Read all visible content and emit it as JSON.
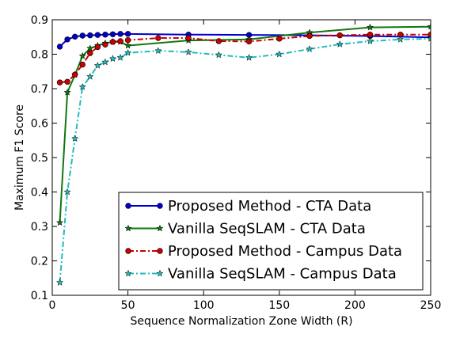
{
  "chart_data": {
    "type": "line",
    "title": "",
    "xlabel": "Sequence Normalization Zone Width (R)",
    "ylabel": "Maximum F1 Score",
    "xlim": [
      0,
      250
    ],
    "ylim": [
      0.1,
      0.9
    ],
    "x_ticks": [
      "0",
      "50",
      "100",
      "150",
      "200",
      "250"
    ],
    "y_ticks": [
      "0.1",
      "0.2",
      "0.3",
      "0.4",
      "0.5",
      "0.6",
      "0.7",
      "0.8",
      "0.9"
    ],
    "grid": false,
    "legend_position": "bottom-right",
    "series": [
      {
        "name": "Proposed Method - CTA Data",
        "color": "#0000cc",
        "line_style": "solid",
        "marker": "circle",
        "x": [
          5,
          10,
          15,
          20,
          25,
          30,
          35,
          40,
          45,
          50,
          90,
          130,
          170,
          210,
          250
        ],
        "y": [
          0.822,
          0.843,
          0.851,
          0.854,
          0.855,
          0.856,
          0.857,
          0.858,
          0.859,
          0.859,
          0.857,
          0.856,
          0.855,
          0.853,
          0.849
        ]
      },
      {
        "name": "Vanilla SeqSLAM - CTA Data",
        "color": "#117711",
        "line_style": "solid",
        "marker": "star",
        "x": [
          5,
          10,
          15,
          20,
          25,
          30,
          35,
          40,
          45,
          50,
          90,
          130,
          170,
          210,
          250
        ],
        "y": [
          0.311,
          0.689,
          0.74,
          0.795,
          0.817,
          0.825,
          0.832,
          0.836,
          0.836,
          0.825,
          0.84,
          0.843,
          0.863,
          0.878,
          0.88
        ]
      },
      {
        "name": "Proposed Method - Campus Data",
        "color": "#cc0000",
        "line_style": "dashdot",
        "marker": "circle",
        "x": [
          5,
          10,
          15,
          20,
          25,
          30,
          35,
          40,
          45,
          50,
          70,
          90,
          110,
          130,
          150,
          170,
          190,
          210,
          230,
          250
        ],
        "y": [
          0.718,
          0.72,
          0.741,
          0.77,
          0.803,
          0.821,
          0.828,
          0.836,
          0.838,
          0.841,
          0.847,
          0.847,
          0.838,
          0.837,
          0.845,
          0.853,
          0.855,
          0.857,
          0.857,
          0.857
        ]
      },
      {
        "name": "Vanilla SeqSLAM - Campus Data",
        "color": "#22bbbb",
        "line_style": "dashdot",
        "marker": "star",
        "x": [
          5,
          10,
          15,
          20,
          25,
          30,
          35,
          40,
          45,
          50,
          70,
          90,
          110,
          130,
          150,
          170,
          190,
          210,
          230,
          250
        ],
        "y": [
          0.137,
          0.4,
          0.555,
          0.705,
          0.735,
          0.767,
          0.777,
          0.787,
          0.79,
          0.804,
          0.81,
          0.806,
          0.798,
          0.79,
          0.8,
          0.815,
          0.829,
          0.838,
          0.843,
          0.845
        ]
      }
    ]
  }
}
